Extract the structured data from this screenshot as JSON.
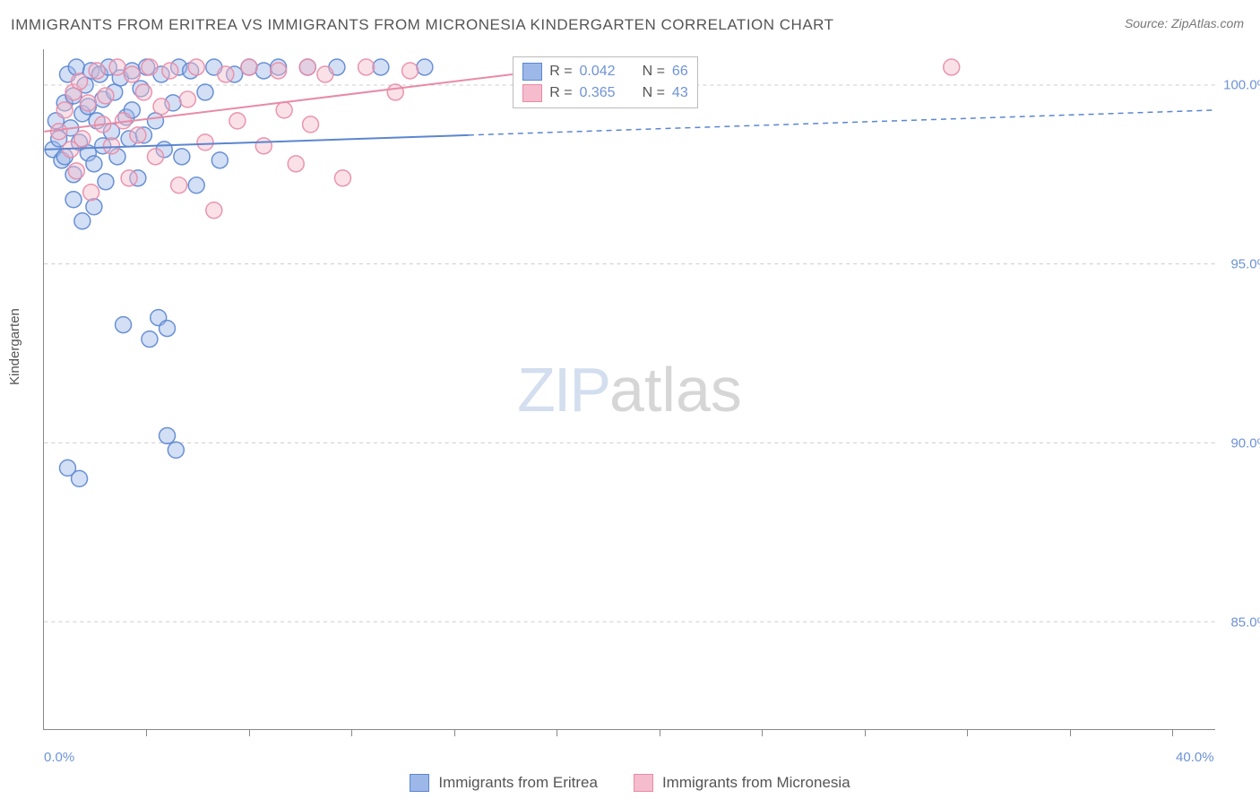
{
  "title": "IMMIGRANTS FROM ERITREA VS IMMIGRANTS FROM MICRONESIA KINDERGARTEN CORRELATION CHART",
  "source": "Source: ZipAtlas.com",
  "watermark": {
    "zip": "ZIP",
    "atlas": "atlas"
  },
  "ylabel": "Kindergarten",
  "chart": {
    "type": "scatter",
    "xlim": [
      0,
      40
    ],
    "ylim": [
      82,
      101
    ],
    "x_ticks": [
      0,
      40
    ],
    "x_tick_labels": [
      "0.0%",
      "40.0%"
    ],
    "x_minor_ticks": [
      3.5,
      7,
      10.5,
      14,
      17.5,
      21,
      24.5,
      28,
      31.5,
      35,
      38.5
    ],
    "y_ticks": [
      85,
      90,
      95,
      100
    ],
    "y_tick_labels": [
      "85.0%",
      "90.0%",
      "95.0%",
      "100.0%"
    ],
    "background_color": "#ffffff",
    "grid_color": "#cccccc",
    "axis_color": "#888888",
    "marker_radius": 9,
    "marker_opacity": 0.45,
    "marker_stroke_opacity": 0.9,
    "series": [
      {
        "name": "Immigrants from Eritrea",
        "color_fill": "#9db8e8",
        "color_stroke": "#5b86d0",
        "R": "0.042",
        "N": "66",
        "trend": {
          "x1": 0,
          "y1": 98.2,
          "x2": 14.5,
          "y2": 98.6,
          "x3": 40,
          "y3": 99.3,
          "solid_width": 2
        },
        "points": [
          [
            0.3,
            98.2
          ],
          [
            0.4,
            99.0
          ],
          [
            0.5,
            98.5
          ],
          [
            0.6,
            97.9
          ],
          [
            0.7,
            99.5
          ],
          [
            0.7,
            98.0
          ],
          [
            0.8,
            100.3
          ],
          [
            0.9,
            98.8
          ],
          [
            1.0,
            99.7
          ],
          [
            1.0,
            97.5
          ],
          [
            1.1,
            100.5
          ],
          [
            1.2,
            98.4
          ],
          [
            1.3,
            99.2
          ],
          [
            1.3,
            96.2
          ],
          [
            1.4,
            100.0
          ],
          [
            1.5,
            98.1
          ],
          [
            1.5,
            99.4
          ],
          [
            1.6,
            100.4
          ],
          [
            1.7,
            97.8
          ],
          [
            1.8,
            99.0
          ],
          [
            1.9,
            100.3
          ],
          [
            2.0,
            98.3
          ],
          [
            2.0,
            99.6
          ],
          [
            2.1,
            97.3
          ],
          [
            2.2,
            100.5
          ],
          [
            2.3,
            98.7
          ],
          [
            2.4,
            99.8
          ],
          [
            2.5,
            98.0
          ],
          [
            2.6,
            100.2
          ],
          [
            2.7,
            93.3
          ],
          [
            2.8,
            99.1
          ],
          [
            2.9,
            98.5
          ],
          [
            3.0,
            100.4
          ],
          [
            3.0,
            99.3
          ],
          [
            3.2,
            97.4
          ],
          [
            3.3,
            99.9
          ],
          [
            3.4,
            98.6
          ],
          [
            3.5,
            100.5
          ],
          [
            3.6,
            92.9
          ],
          [
            3.8,
            99.0
          ],
          [
            3.9,
            93.5
          ],
          [
            4.0,
            100.3
          ],
          [
            4.1,
            98.2
          ],
          [
            4.2,
            93.2
          ],
          [
            4.4,
            99.5
          ],
          [
            4.5,
            89.8
          ],
          [
            4.6,
            100.5
          ],
          [
            4.7,
            98.0
          ],
          [
            5.0,
            100.4
          ],
          [
            5.2,
            97.2
          ],
          [
            5.5,
            99.8
          ],
          [
            5.8,
            100.5
          ],
          [
            6.0,
            97.9
          ],
          [
            6.5,
            100.3
          ],
          [
            7.0,
            100.5
          ],
          [
            7.5,
            100.4
          ],
          [
            8.0,
            100.5
          ],
          [
            9.0,
            100.5
          ],
          [
            10.0,
            100.5
          ],
          [
            11.5,
            100.5
          ],
          [
            13.0,
            100.5
          ],
          [
            0.8,
            89.3
          ],
          [
            1.2,
            89.0
          ],
          [
            4.2,
            90.2
          ],
          [
            1.7,
            96.6
          ],
          [
            1.0,
            96.8
          ]
        ]
      },
      {
        "name": "Immigrants from Micronesia",
        "color_fill": "#f4bccc",
        "color_stroke": "#e88ba7",
        "R": "0.365",
        "N": "43",
        "trend": {
          "x1": 0,
          "y1": 98.7,
          "x2": 16,
          "y2": 100.3,
          "solid_width": 2
        },
        "points": [
          [
            0.5,
            98.7
          ],
          [
            0.7,
            99.3
          ],
          [
            0.9,
            98.2
          ],
          [
            1.0,
            99.8
          ],
          [
            1.1,
            97.6
          ],
          [
            1.2,
            100.1
          ],
          [
            1.3,
            98.5
          ],
          [
            1.5,
            99.5
          ],
          [
            1.6,
            97.0
          ],
          [
            1.8,
            100.4
          ],
          [
            2.0,
            98.9
          ],
          [
            2.1,
            99.7
          ],
          [
            2.3,
            98.3
          ],
          [
            2.5,
            100.5
          ],
          [
            2.7,
            99.0
          ],
          [
            2.9,
            97.4
          ],
          [
            3.0,
            100.3
          ],
          [
            3.2,
            98.6
          ],
          [
            3.4,
            99.8
          ],
          [
            3.6,
            100.5
          ],
          [
            3.8,
            98.0
          ],
          [
            4.0,
            99.4
          ],
          [
            4.3,
            100.4
          ],
          [
            4.6,
            97.2
          ],
          [
            4.9,
            99.6
          ],
          [
            5.2,
            100.5
          ],
          [
            5.5,
            98.4
          ],
          [
            5.8,
            96.5
          ],
          [
            6.2,
            100.3
          ],
          [
            6.6,
            99.0
          ],
          [
            7.0,
            100.5
          ],
          [
            7.5,
            98.3
          ],
          [
            8.0,
            100.4
          ],
          [
            8.2,
            99.3
          ],
          [
            8.6,
            97.8
          ],
          [
            9.0,
            100.5
          ],
          [
            9.1,
            98.9
          ],
          [
            9.6,
            100.3
          ],
          [
            10.2,
            97.4
          ],
          [
            11.0,
            100.5
          ],
          [
            12.0,
            99.8
          ],
          [
            12.5,
            100.4
          ],
          [
            31.0,
            100.5
          ]
        ]
      }
    ]
  },
  "legend_top": {
    "labels": {
      "R": "R =",
      "N": "N ="
    }
  },
  "legend_bottom": {
    "items": [
      "Immigrants from Eritrea",
      "Immigrants from Micronesia"
    ]
  }
}
